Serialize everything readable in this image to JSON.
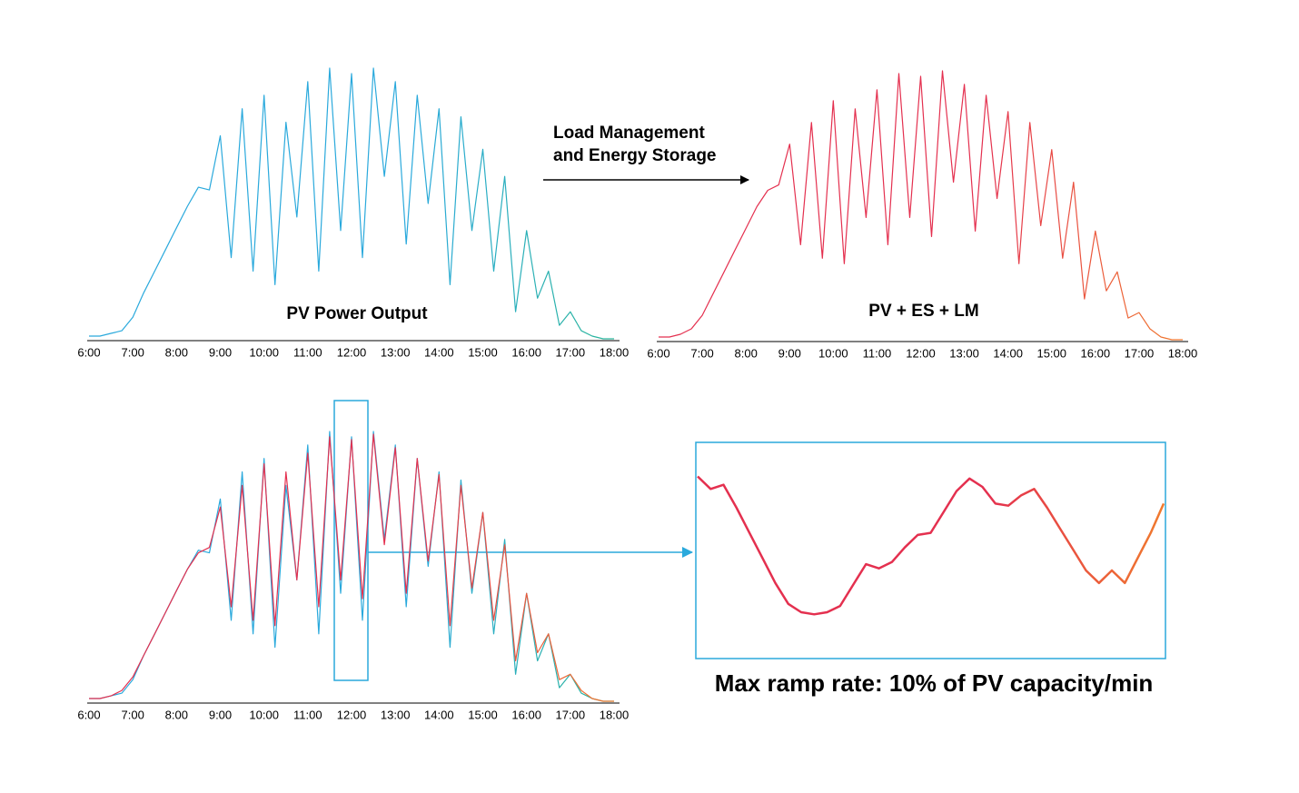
{
  "chart_data": [
    {
      "type": "line",
      "title": "PV Power Output",
      "x": [
        6,
        6.25,
        6.5,
        6.75,
        7,
        7.25,
        7.5,
        7.75,
        8,
        8.25,
        8.5,
        8.75,
        9,
        9.25,
        9.5,
        9.75,
        10,
        10.25,
        10.5,
        10.75,
        11,
        11.25,
        11.5,
        11.75,
        12,
        12.25,
        12.5,
        12.75,
        13,
        13.25,
        13.5,
        13.75,
        14,
        14.25,
        14.5,
        14.75,
        15,
        15.25,
        15.5,
        15.75,
        16,
        16.25,
        16.5,
        16.75,
        17,
        17.25,
        17.5,
        17.75,
        18
      ],
      "series": [
        {
          "color": [
            "#2aa9dc",
            "#2bb59a"
          ],
          "values": [
            1,
            1,
            2,
            3,
            8,
            17,
            25,
            33,
            41,
            49,
            56,
            55,
            75,
            30,
            85,
            25,
            90,
            20,
            80,
            45,
            95,
            25,
            100,
            40,
            98,
            30,
            100,
            60,
            95,
            35,
            90,
            50,
            85,
            20,
            82,
            40,
            70,
            25,
            60,
            10,
            40,
            15,
            25,
            5,
            10,
            3,
            1,
            0,
            0
          ]
        }
      ],
      "xlim": [
        6,
        18
      ],
      "ylim": [
        0,
        100
      ],
      "xticks": [
        {
          "value": 6,
          "label": "6:00"
        },
        {
          "value": 7,
          "label": "7:00"
        },
        {
          "value": 8,
          "label": "8:00"
        },
        {
          "value": 9,
          "label": "9:00"
        },
        {
          "value": 10,
          "label": "10:00"
        },
        {
          "value": 11,
          "label": "11:00"
        },
        {
          "value": 12,
          "label": "12:00"
        },
        {
          "value": 13,
          "label": "13:00"
        },
        {
          "value": 14,
          "label": "14:00"
        },
        {
          "value": 15,
          "label": "15:00"
        },
        {
          "value": 16,
          "label": "16:00"
        },
        {
          "value": 17,
          "label": "17:00"
        },
        {
          "value": 18,
          "label": "18:00"
        }
      ]
    },
    {
      "type": "line",
      "title": "PV + ES + LM",
      "x": [
        6,
        6.25,
        6.5,
        6.75,
        7,
        7.25,
        7.5,
        7.75,
        8,
        8.25,
        8.5,
        8.75,
        9,
        9.25,
        9.5,
        9.75,
        10,
        10.25,
        10.5,
        10.75,
        11,
        11.25,
        11.5,
        11.75,
        12,
        12.25,
        12.5,
        12.75,
        13,
        13.25,
        13.5,
        13.75,
        14,
        14.25,
        14.5,
        14.75,
        15,
        15.25,
        15.5,
        15.75,
        16,
        16.25,
        16.5,
        16.75,
        17,
        17.25,
        17.5,
        17.75,
        18
      ],
      "series": [
        {
          "color": [
            "#e4304f",
            "#f07a2e"
          ],
          "values": [
            1,
            1,
            2,
            4,
            9,
            17,
            25,
            33,
            41,
            49,
            55,
            57,
            72,
            35,
            80,
            30,
            88,
            28,
            85,
            45,
            92,
            35,
            98,
            45,
            97,
            38,
            99,
            58,
            94,
            40,
            90,
            52,
            84,
            28,
            80,
            42,
            70,
            30,
            58,
            15,
            40,
            18,
            25,
            8,
            10,
            4,
            1,
            0,
            0
          ]
        }
      ],
      "xlim": [
        6,
        18
      ],
      "ylim": [
        0,
        100
      ],
      "xticks": [
        {
          "value": 6,
          "label": "6:00"
        },
        {
          "value": 7,
          "label": "7:00"
        },
        {
          "value": 8,
          "label": "8:00"
        },
        {
          "value": 9,
          "label": "9:00"
        },
        {
          "value": 10,
          "label": "10:00"
        },
        {
          "value": 11,
          "label": "11:00"
        },
        {
          "value": 12,
          "label": "12:00"
        },
        {
          "value": 13,
          "label": "13:00"
        },
        {
          "value": 14,
          "label": "14:00"
        },
        {
          "value": 15,
          "label": "15:00"
        },
        {
          "value": 16,
          "label": "16:00"
        },
        {
          "value": 17,
          "label": "17:00"
        },
        {
          "value": 18,
          "label": "18:00"
        }
      ]
    },
    {
      "type": "line",
      "x": [
        6,
        6.25,
        6.5,
        6.75,
        7,
        7.25,
        7.5,
        7.75,
        8,
        8.25,
        8.5,
        8.75,
        9,
        9.25,
        9.5,
        9.75,
        10,
        10.25,
        10.5,
        10.75,
        11,
        11.25,
        11.5,
        11.75,
        12,
        12.25,
        12.5,
        12.75,
        13,
        13.25,
        13.5,
        13.75,
        14,
        14.25,
        14.5,
        14.75,
        15,
        15.25,
        15.5,
        15.75,
        16,
        16.25,
        16.5,
        16.75,
        17,
        17.25,
        17.5,
        17.75,
        18
      ],
      "series": [
        {
          "color": [
            "#2aa9dc",
            "#2bb59a"
          ],
          "values": [
            1,
            1,
            2,
            3,
            8,
            17,
            25,
            33,
            41,
            49,
            56,
            55,
            75,
            30,
            85,
            25,
            90,
            20,
            80,
            45,
            95,
            25,
            100,
            40,
            98,
            30,
            100,
            60,
            95,
            35,
            90,
            50,
            85,
            20,
            82,
            40,
            70,
            25,
            60,
            10,
            40,
            15,
            25,
            5,
            10,
            3,
            1,
            0,
            0
          ]
        },
        {
          "color": [
            "#e4304f",
            "#f07a2e"
          ],
          "values": [
            1,
            1,
            2,
            4,
            9,
            17,
            25,
            33,
            41,
            49,
            55,
            57,
            72,
            35,
            80,
            30,
            88,
            28,
            85,
            45,
            92,
            35,
            98,
            45,
            97,
            38,
            99,
            58,
            94,
            40,
            90,
            52,
            84,
            28,
            80,
            42,
            70,
            30,
            58,
            15,
            40,
            18,
            25,
            8,
            10,
            4,
            1,
            0,
            0
          ]
        }
      ],
      "xlim": [
        6,
        18
      ],
      "ylim": [
        0,
        100
      ],
      "xticks": [
        {
          "value": 6,
          "label": "6:00"
        },
        {
          "value": 7,
          "label": "7:00"
        },
        {
          "value": 8,
          "label": "8:00"
        },
        {
          "value": 9,
          "label": "9:00"
        },
        {
          "value": 10,
          "label": "10:00"
        },
        {
          "value": 11,
          "label": "11:00"
        },
        {
          "value": 12,
          "label": "12:00"
        },
        {
          "value": 13,
          "label": "13:00"
        },
        {
          "value": 14,
          "label": "14:00"
        },
        {
          "value": 15,
          "label": "15:00"
        },
        {
          "value": 16,
          "label": "16:00"
        },
        {
          "value": 17,
          "label": "17:00"
        },
        {
          "value": 18,
          "label": "18:00"
        }
      ]
    },
    {
      "type": "line",
      "title": "Max ramp rate: 10% of PV capacity/min",
      "series": [
        {
          "color": [
            "#e4304f",
            "#f07a2e"
          ],
          "values": [
            85,
            79,
            81,
            70,
            58,
            46,
            34,
            24,
            20,
            19,
            20,
            23,
            33,
            43,
            41,
            44,
            51,
            57,
            58,
            68,
            78,
            84,
            80,
            72,
            71,
            76,
            79,
            70,
            60,
            50,
            40,
            34,
            40,
            34,
            46,
            58,
            72
          ]
        }
      ],
      "ylim": [
        0,
        100
      ]
    }
  ],
  "annotation": {
    "lines": [
      "Load Management",
      "and Energy Storage"
    ]
  }
}
